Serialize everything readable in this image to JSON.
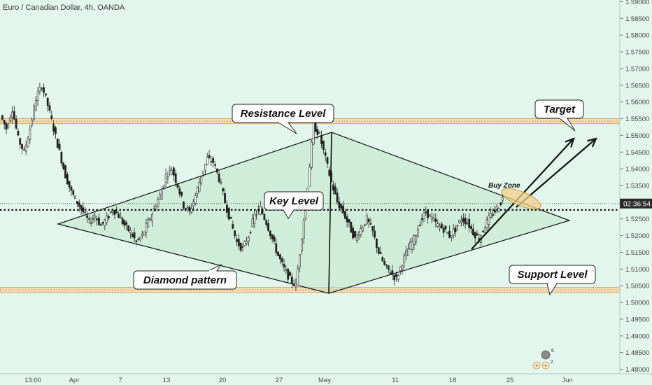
{
  "title": "Euro / Canadian Dollar, 4h, OANDA",
  "current_price_tag": "02:36:54",
  "annotations": {
    "resistance": "Resistance Level",
    "key": "Key Level",
    "diamond": "Diamond pattern",
    "support": "Support Level",
    "target": "Target",
    "buy_zone": "Buy Zone"
  },
  "icon_badges": {
    "top": "6",
    "bottom": "2"
  },
  "colors": {
    "background": "#e3f6ee",
    "candle": "#222222",
    "zone_fill": "#f4dcb6",
    "zone_border": "#d6a866",
    "diamond_fill": "#bfe6c6",
    "price_tag": "#2b2b2b",
    "buy_zone": "#f2d088"
  },
  "chart_data": {
    "type": "candlestick",
    "title": "Euro / Canadian Dollar, 4h, OANDA",
    "ylim": [
      1.48,
      1.59
    ],
    "yticks": [
      "1.59000",
      "1.58500",
      "1.58000",
      "1.57500",
      "1.57000",
      "1.56500",
      "1.56000",
      "1.55500",
      "1.55000",
      "1.54500",
      "1.54000",
      "1.53500",
      "1.53000",
      "1.52500",
      "1.52000",
      "1.51500",
      "1.51000",
      "1.50500",
      "1.50000",
      "1.49500",
      "1.49000",
      "1.48500",
      "1.48000"
    ],
    "xticks": [
      "13:00",
      "Apr",
      "7",
      "13",
      "20",
      "27",
      "May",
      "11",
      "18",
      "25",
      "Jun"
    ],
    "resistance_zone": [
      1.5535,
      1.555
    ],
    "support_zone": [
      1.503,
      1.5045
    ],
    "key_level": 1.5277,
    "current_price": 1.5296,
    "price_path": [
      1.556,
      1.552,
      1.558,
      1.549,
      1.545,
      1.552,
      1.561,
      1.565,
      1.559,
      1.552,
      1.545,
      1.538,
      1.533,
      1.53,
      1.527,
      1.524,
      1.526,
      1.523,
      1.525,
      1.528,
      1.526,
      1.523,
      1.521,
      1.518,
      1.52,
      1.524,
      1.528,
      1.532,
      1.538,
      1.54,
      1.535,
      1.529,
      1.527,
      1.532,
      1.538,
      1.543,
      1.542,
      1.537,
      1.53,
      1.524,
      1.518,
      1.516,
      1.52,
      1.526,
      1.528,
      1.524,
      1.519,
      1.514,
      1.51,
      1.507,
      1.505,
      1.52,
      1.535,
      1.553,
      1.55,
      1.543,
      1.536,
      1.53,
      1.527,
      1.523,
      1.519,
      1.522,
      1.525,
      1.521,
      1.515,
      1.511,
      1.509,
      1.507,
      1.512,
      1.516,
      1.519,
      1.524,
      1.527,
      1.525,
      1.523,
      1.522,
      1.52,
      1.522,
      1.525,
      1.524,
      1.521,
      1.519,
      1.523,
      1.526,
      1.528,
      1.531
    ]
  }
}
